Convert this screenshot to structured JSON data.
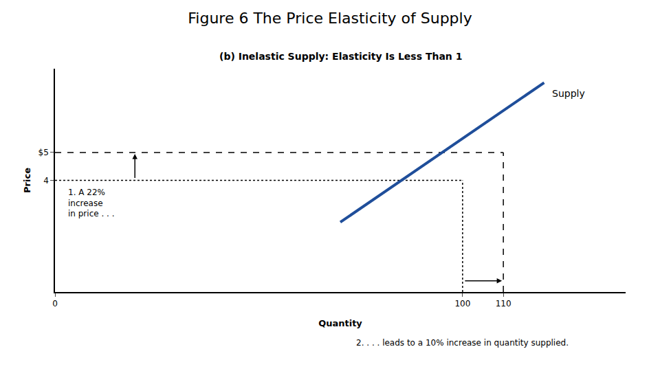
{
  "chart_data": {
    "type": "line",
    "title": "Figure 6 The Price Elasticity of Supply",
    "subtitle": "(b) Inelastic Supply: Elasticity Is Less Than 1",
    "xlabel": "Quantity",
    "ylabel": "Price",
    "series": [
      {
        "name": "Supply",
        "color": "#1F4E9A",
        "x": [
          70,
          120
        ],
        "values": [
          2.5,
          7.5
        ]
      }
    ],
    "guides": [
      {
        "x": 110,
        "y": 5,
        "line_style": "dashed",
        "color": "#000000"
      },
      {
        "x": 100,
        "y": 4,
        "line_style": "dotted",
        "color": "#000000"
      }
    ],
    "annotations": [
      {
        "text": "1. A 22%\nincrease\nin price . . ."
      },
      {
        "text": "2. . . . leads to a 10% increase in quantity supplied."
      }
    ],
    "xlim": [
      0,
      140
    ],
    "ylim": [
      0,
      8
    ],
    "xticks": [
      0,
      100,
      110
    ],
    "yticks": [
      4,
      {
        "value": 5,
        "label": "$5"
      }
    ],
    "grid": false
  }
}
